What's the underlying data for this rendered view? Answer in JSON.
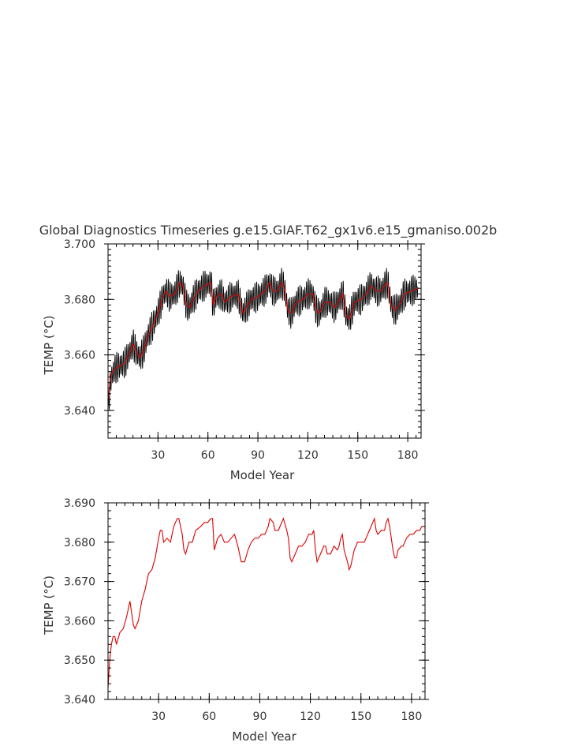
{
  "figure": {
    "title": "Global Diagnostics Timeseries g.e15.GIAF.T62_gx1v6.e15_gmaniso.002b"
  },
  "chart_data": [
    {
      "type": "line",
      "panel": "top",
      "xlabel": "Model Year",
      "ylabel": "TEMP (°C)",
      "xlim": [
        0,
        188
      ],
      "ylim": [
        3.63,
        3.7
      ],
      "xticks": [
        30,
        60,
        90,
        120,
        150,
        180
      ],
      "xtick_labels": [
        "30",
        "60",
        "90",
        "120",
        "150",
        "180"
      ],
      "yticks": [
        3.64,
        3.66,
        3.68,
        3.7
      ],
      "ytick_labels": [
        "3.640",
        "3.660",
        "3.680",
        "3.700"
      ],
      "y_minor_step": 0.002,
      "x_minor_step": 5,
      "series": [
        {
          "color": "#000000",
          "style": "monthly",
          "amplitude": 0.0045,
          "points_per_year": 12,
          "anchors": [
            [
              0,
              3.638
            ],
            [
              1,
              3.648
            ],
            [
              2,
              3.652
            ],
            [
              4,
              3.655
            ],
            [
              7,
              3.656
            ],
            [
              10,
              3.657
            ],
            [
              13,
              3.661
            ],
            [
              15,
              3.664
            ],
            [
              17,
              3.661
            ],
            [
              19,
              3.659
            ],
            [
              21,
              3.661
            ],
            [
              24,
              3.667
            ],
            [
              28,
              3.672
            ],
            [
              31,
              3.677
            ],
            [
              33,
              3.681
            ],
            [
              35,
              3.683
            ],
            [
              37,
              3.681
            ],
            [
              40,
              3.682
            ],
            [
              43,
              3.686
            ],
            [
              45,
              3.685
            ],
            [
              47,
              3.678
            ],
            [
              49,
              3.677
            ],
            [
              51,
              3.68
            ],
            [
              54,
              3.683
            ],
            [
              58,
              3.685
            ],
            [
              62,
              3.686
            ],
            [
              63,
              3.678
            ],
            [
              65,
              3.681
            ],
            [
              68,
              3.682
            ],
            [
              70,
              3.679
            ],
            [
              74,
              3.681
            ],
            [
              78,
              3.682
            ],
            [
              81,
              3.675
            ],
            [
              83,
              3.677
            ],
            [
              86,
              3.68
            ],
            [
              90,
              3.681
            ],
            [
              94,
              3.683
            ],
            [
              97,
              3.686
            ],
            [
              99,
              3.683
            ],
            [
              102,
              3.683
            ],
            [
              104,
              3.686
            ],
            [
              106,
              3.684
            ],
            [
              108,
              3.676
            ],
            [
              110,
              3.675
            ],
            [
              113,
              3.679
            ],
            [
              117,
              3.68
            ],
            [
              120,
              3.682
            ],
            [
              123,
              3.682
            ],
            [
              125,
              3.676
            ],
            [
              127,
              3.675
            ],
            [
              130,
              3.679
            ],
            [
              133,
              3.679
            ],
            [
              136,
              3.677
            ],
            [
              139,
              3.68
            ],
            [
              141,
              3.682
            ],
            [
              143,
              3.674
            ],
            [
              145,
              3.673
            ],
            [
              148,
              3.679
            ],
            [
              152,
              3.68
            ],
            [
              155,
              3.682
            ],
            [
              158,
              3.685
            ],
            [
              161,
              3.683
            ],
            [
              164,
              3.683
            ],
            [
              166,
              3.685
            ],
            [
              168,
              3.686
            ],
            [
              170,
              3.678
            ],
            [
              172,
              3.676
            ],
            [
              175,
              3.678
            ],
            [
              178,
              3.682
            ],
            [
              182,
              3.683
            ],
            [
              186,
              3.684
            ]
          ]
        },
        {
          "color": "#dd0000",
          "style": "annual",
          "anchors": [
            [
              0,
              3.643
            ],
            [
              1,
              3.65
            ],
            [
              2,
              3.653
            ],
            [
              4,
              3.655
            ],
            [
              7,
              3.656
            ],
            [
              10,
              3.657
            ],
            [
              13,
              3.661
            ],
            [
              15,
              3.664
            ],
            [
              17,
              3.661
            ],
            [
              19,
              3.659
            ],
            [
              21,
              3.661
            ],
            [
              24,
              3.667
            ],
            [
              28,
              3.672
            ],
            [
              31,
              3.677
            ],
            [
              33,
              3.681
            ],
            [
              35,
              3.683
            ],
            [
              37,
              3.681
            ],
            [
              40,
              3.682
            ],
            [
              43,
              3.686
            ],
            [
              45,
              3.685
            ],
            [
              47,
              3.678
            ],
            [
              49,
              3.677
            ],
            [
              51,
              3.68
            ],
            [
              54,
              3.683
            ],
            [
              58,
              3.685
            ],
            [
              62,
              3.686
            ],
            [
              63,
              3.678
            ],
            [
              65,
              3.681
            ],
            [
              68,
              3.682
            ],
            [
              70,
              3.679
            ],
            [
              74,
              3.681
            ],
            [
              78,
              3.682
            ],
            [
              81,
              3.675
            ],
            [
              83,
              3.677
            ],
            [
              86,
              3.68
            ],
            [
              90,
              3.681
            ],
            [
              94,
              3.683
            ],
            [
              97,
              3.686
            ],
            [
              99,
              3.683
            ],
            [
              102,
              3.683
            ],
            [
              104,
              3.686
            ],
            [
              106,
              3.684
            ],
            [
              108,
              3.676
            ],
            [
              110,
              3.675
            ],
            [
              113,
              3.679
            ],
            [
              117,
              3.68
            ],
            [
              120,
              3.682
            ],
            [
              123,
              3.682
            ],
            [
              125,
              3.676
            ],
            [
              127,
              3.675
            ],
            [
              130,
              3.679
            ],
            [
              133,
              3.679
            ],
            [
              136,
              3.677
            ],
            [
              139,
              3.68
            ],
            [
              141,
              3.682
            ],
            [
              143,
              3.674
            ],
            [
              145,
              3.673
            ],
            [
              148,
              3.679
            ],
            [
              152,
              3.68
            ],
            [
              155,
              3.682
            ],
            [
              158,
              3.685
            ],
            [
              161,
              3.683
            ],
            [
              164,
              3.683
            ],
            [
              166,
              3.685
            ],
            [
              168,
              3.686
            ],
            [
              170,
              3.678
            ],
            [
              172,
              3.676
            ],
            [
              175,
              3.678
            ],
            [
              178,
              3.682
            ],
            [
              182,
              3.683
            ],
            [
              186,
              3.684
            ]
          ]
        }
      ]
    },
    {
      "type": "line",
      "panel": "bottom",
      "xlabel": "Model Year",
      "ylabel": "TEMP (°C)",
      "xlim": [
        0,
        188
      ],
      "ylim": [
        3.64,
        3.69
      ],
      "xticks": [
        30,
        60,
        90,
        120,
        150,
        180
      ],
      "xtick_labels": [
        "30",
        "60",
        "90",
        "120",
        "150",
        "180"
      ],
      "yticks": [
        3.64,
        3.65,
        3.66,
        3.67,
        3.68,
        3.69
      ],
      "ytick_labels": [
        "3.640",
        "3.650",
        "3.660",
        "3.670",
        "3.680",
        "3.690"
      ],
      "y_minor_step": 0.002,
      "x_minor_step": 5,
      "series": [
        {
          "color": "#dd0000",
          "style": "annual",
          "anchors": [
            [
              0,
              3.643
            ],
            [
              1,
              3.65
            ],
            [
              2,
              3.654
            ],
            [
              3,
              3.656
            ],
            [
              4,
              3.656
            ],
            [
              5,
              3.654
            ],
            [
              7,
              3.657
            ],
            [
              9,
              3.658
            ],
            [
              11,
              3.661
            ],
            [
              13,
              3.665
            ],
            [
              14,
              3.662
            ],
            [
              15,
              3.659
            ],
            [
              16,
              3.658
            ],
            [
              18,
              3.66
            ],
            [
              20,
              3.665
            ],
            [
              22,
              3.668
            ],
            [
              24,
              3.672
            ],
            [
              26,
              3.673
            ],
            [
              28,
              3.676
            ],
            [
              30,
              3.681
            ],
            [
              31,
              3.683
            ],
            [
              32,
              3.683
            ],
            [
              33,
              3.68
            ],
            [
              35,
              3.681
            ],
            [
              37,
              3.68
            ],
            [
              39,
              3.684
            ],
            [
              41,
              3.686
            ],
            [
              42,
              3.686
            ],
            [
              44,
              3.682
            ],
            [
              45,
              3.678
            ],
            [
              46,
              3.677
            ],
            [
              48,
              3.68
            ],
            [
              50,
              3.68
            ],
            [
              52,
              3.683
            ],
            [
              55,
              3.684
            ],
            [
              57,
              3.685
            ],
            [
              59,
              3.685
            ],
            [
              61,
              3.686
            ],
            [
              62,
              3.686
            ],
            [
              63,
              3.678
            ],
            [
              65,
              3.681
            ],
            [
              67,
              3.682
            ],
            [
              69,
              3.68
            ],
            [
              71,
              3.68
            ],
            [
              73,
              3.681
            ],
            [
              75,
              3.682
            ],
            [
              77,
              3.679
            ],
            [
              79,
              3.675
            ],
            [
              81,
              3.675
            ],
            [
              83,
              3.678
            ],
            [
              85,
              3.68
            ],
            [
              87,
              3.681
            ],
            [
              89,
              3.681
            ],
            [
              91,
              3.682
            ],
            [
              93,
              3.682
            ],
            [
              95,
              3.684
            ],
            [
              96,
              3.686
            ],
            [
              98,
              3.685
            ],
            [
              99,
              3.683
            ],
            [
              100,
              3.683
            ],
            [
              101,
              3.683
            ],
            [
              103,
              3.685
            ],
            [
              104,
              3.686
            ],
            [
              106,
              3.683
            ],
            [
              107,
              3.681
            ],
            [
              108,
              3.676
            ],
            [
              109,
              3.675
            ],
            [
              111,
              3.677
            ],
            [
              113,
              3.679
            ],
            [
              115,
              3.679
            ],
            [
              117,
              3.68
            ],
            [
              119,
              3.682
            ],
            [
              121,
              3.682
            ],
            [
              122,
              3.683
            ],
            [
              123,
              3.678
            ],
            [
              124,
              3.675
            ],
            [
              126,
              3.677
            ],
            [
              128,
              3.679
            ],
            [
              129,
              3.679
            ],
            [
              130,
              3.677
            ],
            [
              132,
              3.677
            ],
            [
              134,
              3.679
            ],
            [
              136,
              3.678
            ],
            [
              137,
              3.679
            ],
            [
              138,
              3.681
            ],
            [
              139,
              3.682
            ],
            [
              140,
              3.678
            ],
            [
              142,
              3.675
            ],
            [
              143,
              3.673
            ],
            [
              144,
              3.674
            ],
            [
              146,
              3.678
            ],
            [
              148,
              3.68
            ],
            [
              150,
              3.68
            ],
            [
              152,
              3.68
            ],
            [
              153,
              3.681
            ],
            [
              155,
              3.683
            ],
            [
              157,
              3.685
            ],
            [
              158,
              3.686
            ],
            [
              159,
              3.683
            ],
            [
              160,
              3.682
            ],
            [
              162,
              3.683
            ],
            [
              164,
              3.683
            ],
            [
              165,
              3.685
            ],
            [
              166,
              3.686
            ],
            [
              167,
              3.684
            ],
            [
              168,
              3.681
            ],
            [
              169,
              3.678
            ],
            [
              170,
              3.676
            ],
            [
              171,
              3.676
            ],
            [
              172,
              3.678
            ],
            [
              174,
              3.679
            ],
            [
              175,
              3.679
            ],
            [
              177,
              3.681
            ],
            [
              179,
              3.682
            ],
            [
              181,
              3.682
            ],
            [
              183,
              3.683
            ],
            [
              185,
              3.683
            ],
            [
              186,
              3.684
            ]
          ]
        }
      ]
    }
  ]
}
